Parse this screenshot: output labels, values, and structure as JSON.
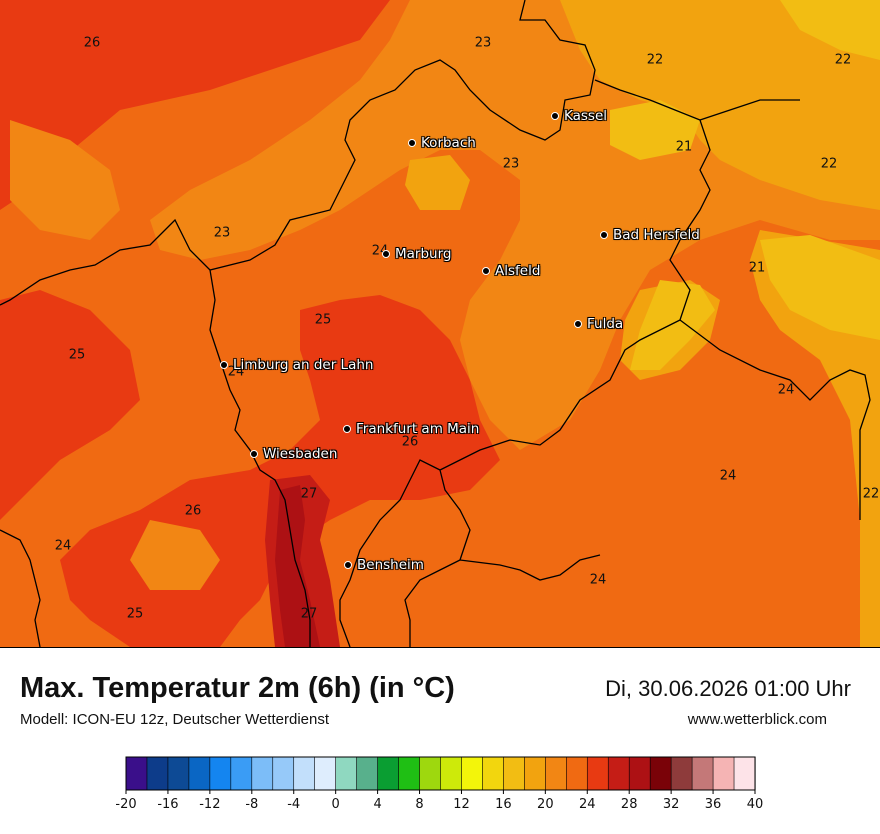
{
  "title": "Max. Temperatur 2m (6h) (in °C)",
  "subtitle": "Modell: ICON-EU 12z, Deutscher Wetterdienst",
  "datetime": "Di, 30.06.2026 01:00 Uhr",
  "website": "www.wetterblick.com",
  "cities": [
    {
      "id": "korbach",
      "name": "Korbach"
    },
    {
      "id": "kassel",
      "name": "Kassel"
    },
    {
      "id": "marburg",
      "name": "Marburg"
    },
    {
      "id": "alsfeld",
      "name": "Alsfeld"
    },
    {
      "id": "bad-hersfeld",
      "name": "Bad Hersfeld"
    },
    {
      "id": "fulda",
      "name": "Fulda"
    },
    {
      "id": "limburg",
      "name": "Limburg an der Lahn"
    },
    {
      "id": "frankfurt",
      "name": "Frankfurt am Main"
    },
    {
      "id": "wiesbaden",
      "name": "Wiesbaden"
    },
    {
      "id": "bensheim",
      "name": "Bensheim"
    }
  ],
  "isolines": [
    "26",
    "23",
    "22",
    "22",
    "23",
    "21",
    "22",
    "23",
    "24",
    "21",
    "25",
    "25",
    "24",
    "24",
    "26",
    "27",
    "26",
    "22",
    "24",
    "27",
    "25",
    "24"
  ],
  "legend": {
    "colors": [
      "#3a0f8a",
      "#0d3c8a",
      "#0d4a95",
      "#0a66c4",
      "#1485f0",
      "#3a9cf5",
      "#7cbdf8",
      "#96c9f9",
      "#c2dffb",
      "#deedfd",
      "#8fd8c0",
      "#58b08c",
      "#0a9e32",
      "#1fbf14",
      "#9ed80e",
      "#cdea0a",
      "#f3f50a",
      "#f2d60e",
      "#f2bd13",
      "#f2a30f",
      "#f28614",
      "#f06a12",
      "#e83a12",
      "#c51d16",
      "#ad1114",
      "#7a0208",
      "#8e3b3b",
      "#c47878",
      "#f5b4b4",
      "#fde3e8"
    ],
    "ticks": [
      "-20",
      "-16",
      "-12",
      "-8",
      "-4",
      "0",
      "4",
      "8",
      "12",
      "16",
      "20",
      "24",
      "28",
      "32",
      "36",
      "40"
    ]
  },
  "colors": {
    "t21": "#f2bd13",
    "t22": "#f2a30f",
    "t23": "#f28614",
    "t24": "#f06a12",
    "t25": "#e83a12",
    "t26": "#c51d16",
    "t27": "#ad1114"
  }
}
